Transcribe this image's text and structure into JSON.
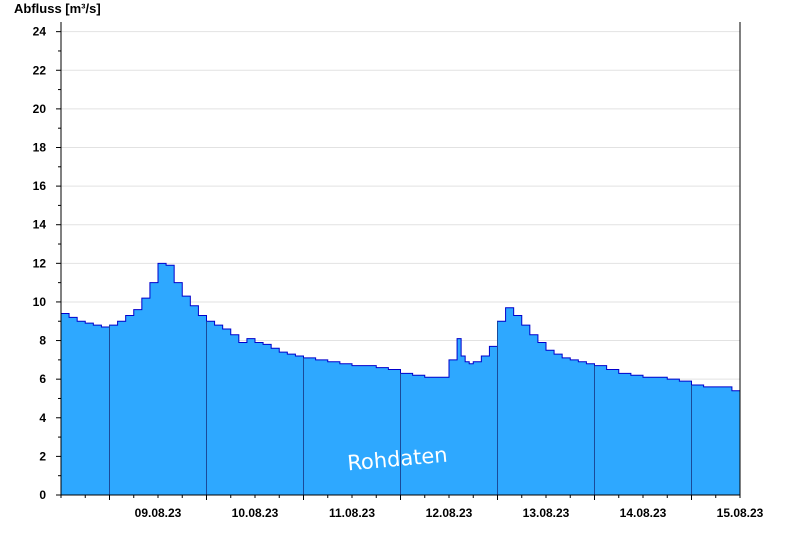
{
  "chart_data": {
    "type": "area",
    "ylabel": "Abfluss [m³/s]",
    "watermark": "Rohdaten",
    "ylim": [
      0,
      24.5
    ],
    "xlim": [
      "2023-08-08T12:00",
      "2023-08-15T12:00"
    ],
    "yticks": [
      0,
      2,
      4,
      6,
      8,
      10,
      12,
      14,
      16,
      18,
      20,
      22,
      24
    ],
    "xticks": [
      {
        "label": "09.08.23",
        "at": "2023-08-09T12:00"
      },
      {
        "label": "10.08.23",
        "at": "2023-08-10T12:00"
      },
      {
        "label": "11.08.23",
        "at": "2023-08-11T12:00"
      },
      {
        "label": "12.08.23",
        "at": "2023-08-12T12:00"
      },
      {
        "label": "13.08.23",
        "at": "2023-08-13T12:00"
      },
      {
        "label": "14.08.23",
        "at": "2023-08-14T12:00"
      },
      {
        "label": "15.08.23",
        "at": "2023-08-15T12:00"
      }
    ],
    "day_boundaries": [
      "2023-08-09T00:00",
      "2023-08-10T00:00",
      "2023-08-11T00:00",
      "2023-08-12T00:00",
      "2023-08-13T00:00",
      "2023-08-14T00:00",
      "2023-08-15T00:00"
    ],
    "grid": "horizontal",
    "fill_color": "#2ea8ff",
    "line_color": "#0000cc",
    "series": [
      {
        "x": [
          "2023-08-08T12:00",
          "2023-08-08T14:00",
          "2023-08-08T16:00",
          "2023-08-08T18:00",
          "2023-08-08T20:00",
          "2023-08-08T22:00",
          "2023-08-09T00:00",
          "2023-08-09T02:00",
          "2023-08-09T04:00",
          "2023-08-09T06:00",
          "2023-08-09T08:00",
          "2023-08-09T10:00",
          "2023-08-09T12:00",
          "2023-08-09T14:00",
          "2023-08-09T16:00",
          "2023-08-09T18:00",
          "2023-08-09T20:00",
          "2023-08-09T22:00",
          "2023-08-10T00:00",
          "2023-08-10T02:00",
          "2023-08-10T04:00",
          "2023-08-10T06:00",
          "2023-08-10T08:00",
          "2023-08-10T10:00",
          "2023-08-10T12:00",
          "2023-08-10T14:00",
          "2023-08-10T16:00",
          "2023-08-10T18:00",
          "2023-08-10T20:00",
          "2023-08-10T22:00",
          "2023-08-11T00:00",
          "2023-08-11T03:00",
          "2023-08-11T06:00",
          "2023-08-11T09:00",
          "2023-08-11T12:00",
          "2023-08-11T15:00",
          "2023-08-11T18:00",
          "2023-08-11T21:00",
          "2023-08-12T00:00",
          "2023-08-12T03:00",
          "2023-08-12T06:00",
          "2023-08-12T09:00",
          "2023-08-12T11:00",
          "2023-08-12T12:00",
          "2023-08-12T14:00",
          "2023-08-12T15:00",
          "2023-08-12T16:00",
          "2023-08-12T17:00",
          "2023-08-12T18:00",
          "2023-08-12T20:00",
          "2023-08-12T22:00",
          "2023-08-13T00:00",
          "2023-08-13T02:00",
          "2023-08-13T04:00",
          "2023-08-13T06:00",
          "2023-08-13T08:00",
          "2023-08-13T10:00",
          "2023-08-13T12:00",
          "2023-08-13T14:00",
          "2023-08-13T16:00",
          "2023-08-13T18:00",
          "2023-08-13T20:00",
          "2023-08-13T22:00",
          "2023-08-14T00:00",
          "2023-08-14T03:00",
          "2023-08-14T06:00",
          "2023-08-14T09:00",
          "2023-08-14T12:00",
          "2023-08-14T15:00",
          "2023-08-14T18:00",
          "2023-08-14T21:00",
          "2023-08-15T00:00",
          "2023-08-15T03:00",
          "2023-08-15T06:00",
          "2023-08-15T09:00",
          "2023-08-15T10:00",
          "2023-08-15T12:00"
        ],
        "values": [
          9.4,
          9.2,
          9.0,
          8.9,
          8.8,
          8.7,
          8.8,
          9.0,
          9.3,
          9.6,
          10.2,
          11.0,
          12.0,
          11.9,
          11.0,
          10.3,
          9.8,
          9.3,
          9.0,
          8.8,
          8.6,
          8.3,
          7.9,
          8.1,
          7.9,
          7.8,
          7.6,
          7.4,
          7.3,
          7.2,
          7.1,
          7.0,
          6.9,
          6.8,
          6.7,
          6.7,
          6.6,
          6.5,
          6.3,
          6.2,
          6.1,
          6.1,
          6.1,
          7.0,
          8.1,
          7.2,
          6.9,
          6.8,
          6.9,
          7.2,
          7.7,
          9.0,
          9.7,
          9.3,
          8.8,
          8.3,
          7.9,
          7.5,
          7.3,
          7.1,
          7.0,
          6.9,
          6.8,
          6.7,
          6.5,
          6.3,
          6.2,
          6.1,
          6.1,
          6.0,
          5.9,
          5.7,
          5.6,
          5.6,
          5.6,
          5.4,
          5.6
        ]
      }
    ]
  }
}
